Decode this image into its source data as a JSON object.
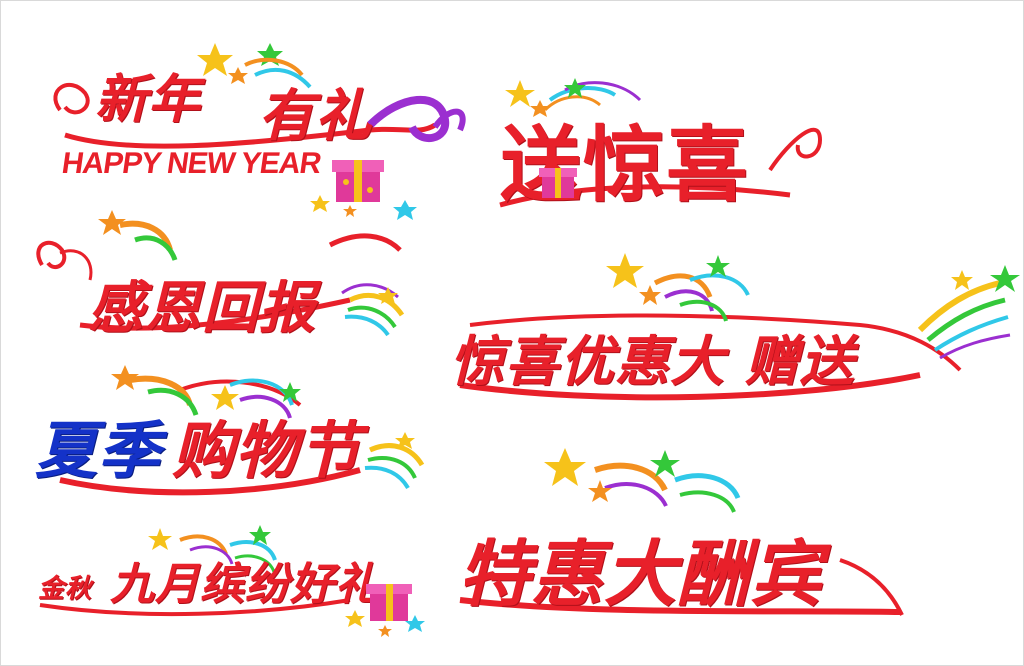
{
  "colors": {
    "red": "#e8202a",
    "blue": "#1432c8",
    "purple": "#9b2fd0",
    "yellow": "#f6c21a",
    "orange": "#f39020",
    "green": "#34c83a",
    "cyan": "#30c8e8"
  },
  "graphics": [
    {
      "id": "xinnian",
      "title_a": "新年",
      "title_b": "有礼",
      "subtitle": "HAPPY NEW YEAR",
      "icons": [
        "star-icon",
        "gift-box-icon",
        "swirl-ribbon"
      ]
    },
    {
      "id": "songjingxi",
      "title": "送惊喜",
      "icons": [
        "star-icon",
        "gift-box-icon",
        "swirl-ribbon"
      ]
    },
    {
      "id": "ganen",
      "title": "感恩回报",
      "icons": [
        "star-icon",
        "swirl-ribbon",
        "streamer-icon"
      ]
    },
    {
      "id": "jingxi",
      "title": "惊喜优惠大 赠送",
      "icons": [
        "star-icon",
        "streamer-icon",
        "swirl-ribbon"
      ]
    },
    {
      "id": "xiaji",
      "title_a": "夏季",
      "title_b": "购物节",
      "icons": [
        "star-icon",
        "streamer-icon",
        "swirl-ribbon"
      ]
    },
    {
      "id": "tehui",
      "title": "特惠大酬宾",
      "icons": [
        "star-icon",
        "streamer-icon",
        "swirl-ribbon"
      ]
    },
    {
      "id": "jinqiu",
      "title_a": "金秋",
      "title_b": "九月缤纷好礼",
      "icons": [
        "star-icon",
        "gift-box-icon",
        "streamer-icon"
      ]
    }
  ]
}
